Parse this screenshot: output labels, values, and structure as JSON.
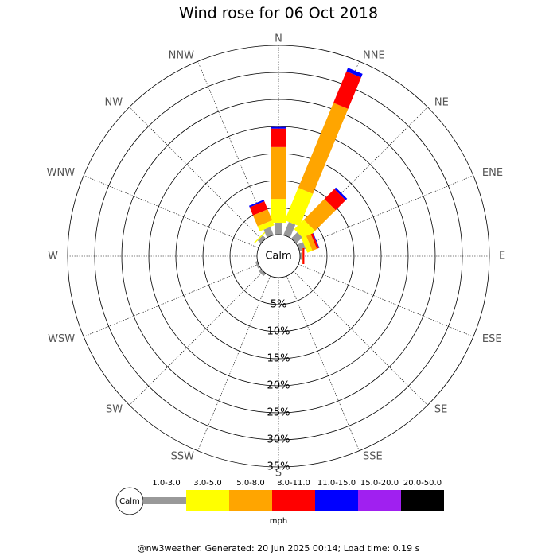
{
  "chart_data": {
    "type": "windrose",
    "title": "Wind rose for 06 Oct 2018",
    "center_label": "Calm",
    "directions": [
      "N",
      "NNE",
      "NE",
      "ENE",
      "E",
      "ESE",
      "SE",
      "SSE",
      "S",
      "SSW",
      "SW",
      "WSW",
      "W",
      "WNW",
      "NW",
      "NNW"
    ],
    "rlim": [
      0,
      35
    ],
    "rticks": [
      {
        "value": 5,
        "label": "5%"
      },
      {
        "value": 10,
        "label": "10%"
      },
      {
        "value": 15,
        "label": "15%"
      },
      {
        "value": 20,
        "label": "20%"
      },
      {
        "value": 25,
        "label": "25%"
      },
      {
        "value": 30,
        "label": "30%"
      },
      {
        "value": 35,
        "label": "35%"
      }
    ],
    "unit": "mph",
    "series": [
      {
        "name": "1.0-3.0",
        "color": "#999999",
        "values": [
          2.2,
          2.6,
          1.6,
          1.2,
          0.3,
          0,
          0,
          0,
          0,
          0,
          0.6,
          0.4,
          0,
          0,
          0.8,
          1.6
        ]
      },
      {
        "name": "3.0-5.0",
        "color": "#ffff00",
        "values": [
          4.4,
          6.5,
          2.5,
          1.0,
          0,
          0,
          0,
          0,
          0,
          0,
          0,
          0,
          0,
          0,
          0.2,
          1.0
        ]
      },
      {
        "name": "5.0-8.0",
        "color": "#ffa500",
        "values": [
          9.6,
          17,
          5.4,
          0.9,
          0.2,
          0,
          0,
          0,
          0,
          0,
          0,
          0,
          0,
          0,
          0,
          2.2
        ]
      },
      {
        "name": "8.0-11.0",
        "color": "#ff0000",
        "values": [
          3.4,
          6.3,
          2.6,
          0.4,
          0.3,
          0,
          0,
          0,
          0,
          0,
          0,
          0,
          0,
          0,
          0,
          1.6
        ]
      },
      {
        "name": "11.0-15.0",
        "color": "#0000ff",
        "values": [
          0.3,
          0.7,
          0.4,
          0.1,
          0,
          0,
          0,
          0,
          0,
          0,
          0,
          0,
          0,
          0,
          0,
          0.3
        ]
      },
      {
        "name": "15.0-20.0",
        "color": "#a020f0",
        "values": [
          0,
          0,
          0,
          0,
          0,
          0,
          0,
          0,
          0,
          0,
          0,
          0,
          0,
          0,
          0,
          0
        ]
      },
      {
        "name": "20.0-50.0",
        "color": "#000000",
        "values": [
          0,
          0,
          0,
          0,
          0,
          0,
          0,
          0,
          0,
          0,
          0,
          0,
          0,
          0,
          0,
          0
        ]
      }
    ]
  },
  "footer": "@nw3weather. Generated: 20 Jun 2025 00:14; Load time: 0.19 s"
}
